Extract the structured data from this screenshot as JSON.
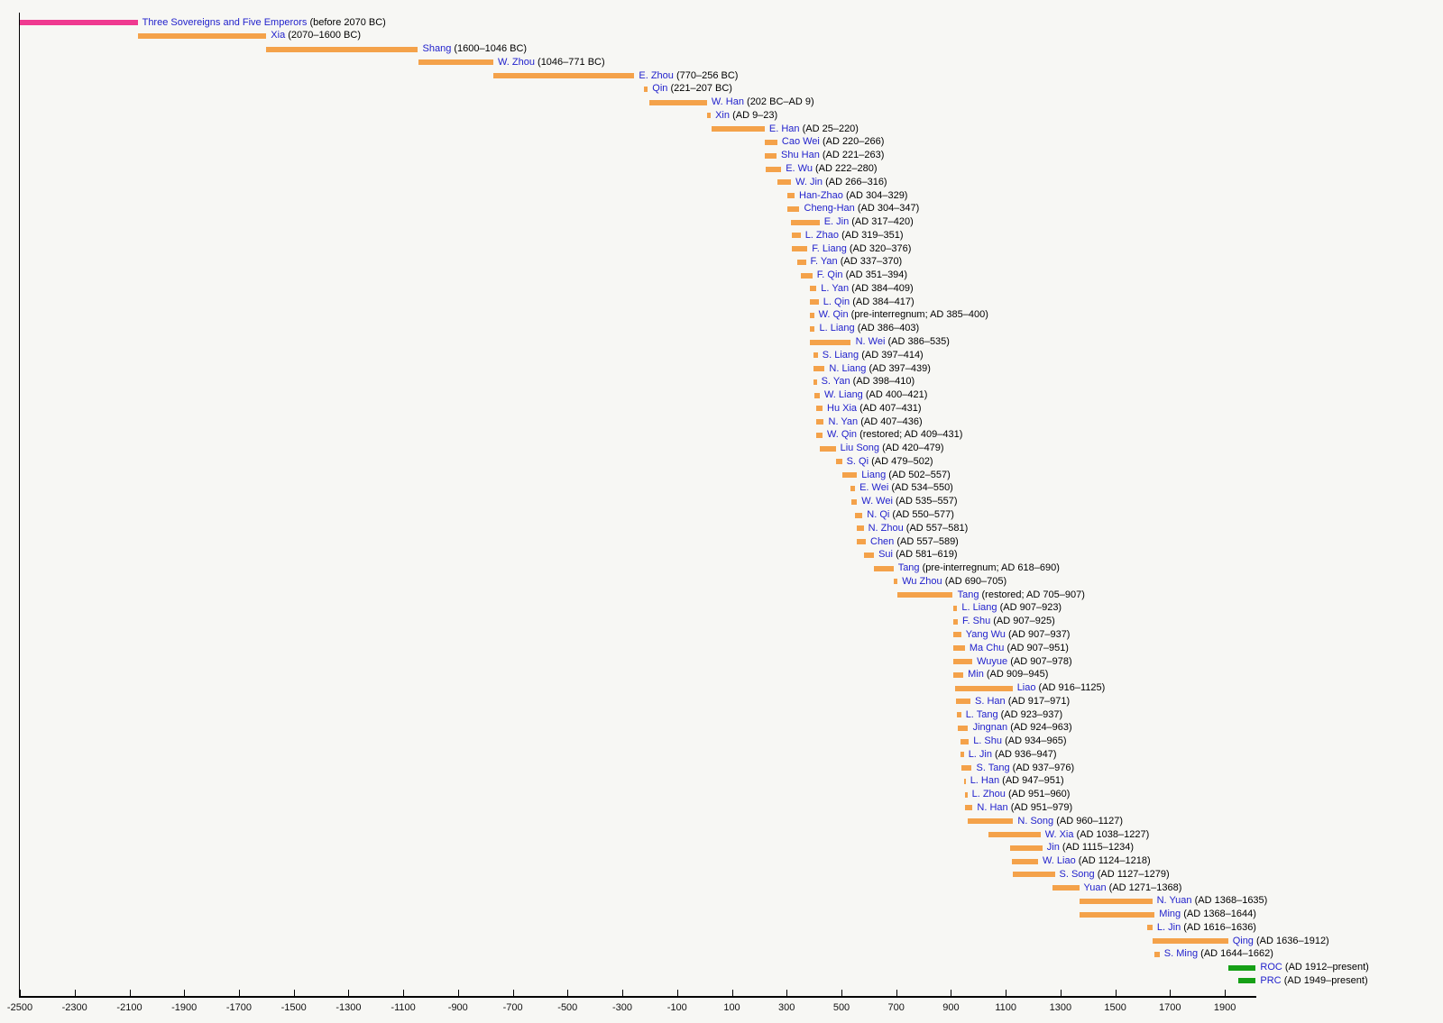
{
  "page": {
    "background": "#F7F7F4"
  },
  "chart_data": {
    "type": "bar",
    "variant": "horizontal-timeline",
    "title": "",
    "xlabel": "",
    "ylabel": "",
    "grid": false,
    "legend": "none",
    "x_axis": {
      "domain": [
        -2500,
        2015
      ],
      "tick_step": 200,
      "tick_values": [
        -2500,
        -2300,
        -2100,
        -1900,
        -1700,
        -1500,
        -1300,
        -1100,
        -900,
        -700,
        -500,
        -300,
        -100,
        100,
        300,
        500,
        700,
        900,
        1100,
        1300,
        1500,
        1700,
        1900
      ],
      "tick_labels": [
        "-2500",
        "-2300",
        "-2100",
        "-1900",
        "-1700",
        "-1500",
        "-1300",
        "-1100",
        "-900",
        "-700",
        "-500",
        "-300",
        "-100",
        "100",
        "300",
        "500",
        "700",
        "900",
        "1100",
        "1300",
        "1500",
        "1700",
        "1900"
      ]
    },
    "colors": {
      "dynasty": "#F4A24A",
      "legendary": "#EF3A90",
      "current": "#16A016",
      "name_text": "#2222CC",
      "date_text": "#000000",
      "axis": "#000000"
    },
    "rows": [
      {
        "name": "Three Sovereigns and Five Emperors",
        "dates": "(before 2070 BC)",
        "start": -2500,
        "end": -2070,
        "kind": "legendary"
      },
      {
        "name": "Xia",
        "dates": "(2070–1600 BC)",
        "start": -2070,
        "end": -1600,
        "kind": "dynasty"
      },
      {
        "name": "Shang",
        "dates": "(1600–1046 BC)",
        "start": -1600,
        "end": -1046,
        "kind": "dynasty"
      },
      {
        "name": "W. Zhou",
        "dates": "(1046–771 BC)",
        "start": -1046,
        "end": -771,
        "kind": "dynasty"
      },
      {
        "name": "E. Zhou",
        "dates": "(770–256 BC)",
        "start": -770,
        "end": -256,
        "kind": "dynasty"
      },
      {
        "name": "Qin",
        "dates": "(221–207 BC)",
        "start": -221,
        "end": -207,
        "kind": "dynasty"
      },
      {
        "name": "W. Han",
        "dates": "(202 BC–AD 9)",
        "start": -202,
        "end": 9,
        "kind": "dynasty"
      },
      {
        "name": "Xin",
        "dates": "(AD 9–23)",
        "start": 9,
        "end": 23,
        "kind": "dynasty"
      },
      {
        "name": "E. Han",
        "dates": "(AD 25–220)",
        "start": 25,
        "end": 220,
        "kind": "dynasty"
      },
      {
        "name": "Cao Wei",
        "dates": "(AD 220–266)",
        "start": 220,
        "end": 266,
        "kind": "dynasty"
      },
      {
        "name": "Shu Han",
        "dates": "(AD 221–263)",
        "start": 221,
        "end": 263,
        "kind": "dynasty"
      },
      {
        "name": "E. Wu",
        "dates": "(AD 222–280)",
        "start": 222,
        "end": 280,
        "kind": "dynasty"
      },
      {
        "name": "W. Jin",
        "dates": "(AD 266–316)",
        "start": 266,
        "end": 316,
        "kind": "dynasty"
      },
      {
        "name": "Han-Zhao",
        "dates": "(AD 304–329)",
        "start": 304,
        "end": 329,
        "kind": "dynasty"
      },
      {
        "name": "Cheng-Han",
        "dates": "(AD 304–347)",
        "start": 304,
        "end": 347,
        "kind": "dynasty"
      },
      {
        "name": "E. Jin",
        "dates": "(AD 317–420)",
        "start": 317,
        "end": 420,
        "kind": "dynasty"
      },
      {
        "name": "L. Zhao",
        "dates": "(AD 319–351)",
        "start": 319,
        "end": 351,
        "kind": "dynasty"
      },
      {
        "name": "F. Liang",
        "dates": "(AD 320–376)",
        "start": 320,
        "end": 376,
        "kind": "dynasty"
      },
      {
        "name": "F. Yan",
        "dates": "(AD 337–370)",
        "start": 337,
        "end": 370,
        "kind": "dynasty"
      },
      {
        "name": "F. Qin",
        "dates": "(AD 351–394)",
        "start": 351,
        "end": 394,
        "kind": "dynasty"
      },
      {
        "name": "L. Yan",
        "dates": "(AD 384–409)",
        "start": 384,
        "end": 409,
        "kind": "dynasty"
      },
      {
        "name": "L. Qin",
        "dates": "(AD 384–417)",
        "start": 384,
        "end": 417,
        "kind": "dynasty"
      },
      {
        "name": "W. Qin",
        "dates": "(pre-interregnum; AD 385–400)",
        "start": 385,
        "end": 400,
        "kind": "dynasty"
      },
      {
        "name": "L. Liang",
        "dates": "(AD 386–403)",
        "start": 386,
        "end": 403,
        "kind": "dynasty"
      },
      {
        "name": "N. Wei",
        "dates": "(AD 386–535)",
        "start": 386,
        "end": 535,
        "kind": "dynasty"
      },
      {
        "name": "S. Liang",
        "dates": "(AD 397–414)",
        "start": 397,
        "end": 414,
        "kind": "dynasty"
      },
      {
        "name": "N. Liang",
        "dates": "(AD 397–439)",
        "start": 397,
        "end": 439,
        "kind": "dynasty"
      },
      {
        "name": "S. Yan",
        "dates": "(AD 398–410)",
        "start": 398,
        "end": 410,
        "kind": "dynasty"
      },
      {
        "name": "W. Liang",
        "dates": "(AD 400–421)",
        "start": 400,
        "end": 421,
        "kind": "dynasty"
      },
      {
        "name": "Hu Xia",
        "dates": "(AD 407–431)",
        "start": 407,
        "end": 431,
        "kind": "dynasty"
      },
      {
        "name": "N. Yan",
        "dates": "(AD 407–436)",
        "start": 407,
        "end": 436,
        "kind": "dynasty"
      },
      {
        "name": "W. Qin",
        "dates": "(restored; AD 409–431)",
        "start": 409,
        "end": 431,
        "kind": "dynasty"
      },
      {
        "name": "Liu Song",
        "dates": "(AD 420–479)",
        "start": 420,
        "end": 479,
        "kind": "dynasty"
      },
      {
        "name": "S. Qi",
        "dates": "(AD 479–502)",
        "start": 479,
        "end": 502,
        "kind": "dynasty"
      },
      {
        "name": "Liang",
        "dates": "(AD 502–557)",
        "start": 502,
        "end": 557,
        "kind": "dynasty"
      },
      {
        "name": "E. Wei",
        "dates": "(AD 534–550)",
        "start": 534,
        "end": 550,
        "kind": "dynasty"
      },
      {
        "name": "W. Wei",
        "dates": "(AD 535–557)",
        "start": 535,
        "end": 557,
        "kind": "dynasty"
      },
      {
        "name": "N. Qi",
        "dates": "(AD 550–577)",
        "start": 550,
        "end": 577,
        "kind": "dynasty"
      },
      {
        "name": "N. Zhou",
        "dates": "(AD 557–581)",
        "start": 557,
        "end": 581,
        "kind": "dynasty"
      },
      {
        "name": "Chen",
        "dates": "(AD 557–589)",
        "start": 557,
        "end": 589,
        "kind": "dynasty"
      },
      {
        "name": "Sui",
        "dates": "(AD 581–619)",
        "start": 581,
        "end": 619,
        "kind": "dynasty"
      },
      {
        "name": "Tang",
        "dates": "(pre-interregnum; AD 618–690)",
        "start": 618,
        "end": 690,
        "kind": "dynasty"
      },
      {
        "name": "Wu Zhou",
        "dates": "(AD 690–705)",
        "start": 690,
        "end": 705,
        "kind": "dynasty"
      },
      {
        "name": "Tang",
        "dates": "(restored; AD 705–907)",
        "start": 705,
        "end": 907,
        "kind": "dynasty"
      },
      {
        "name": "L. Liang",
        "dates": "(AD 907–923)",
        "start": 907,
        "end": 923,
        "kind": "dynasty"
      },
      {
        "name": "F. Shu",
        "dates": "(AD 907–925)",
        "start": 907,
        "end": 925,
        "kind": "dynasty"
      },
      {
        "name": "Yang Wu",
        "dates": "(AD 907–937)",
        "start": 907,
        "end": 937,
        "kind": "dynasty"
      },
      {
        "name": "Ma Chu",
        "dates": "(AD 907–951)",
        "start": 907,
        "end": 951,
        "kind": "dynasty"
      },
      {
        "name": "Wuyue",
        "dates": "(AD 907–978)",
        "start": 907,
        "end": 978,
        "kind": "dynasty"
      },
      {
        "name": "Min",
        "dates": "(AD 909–945)",
        "start": 909,
        "end": 945,
        "kind": "dynasty"
      },
      {
        "name": "Liao",
        "dates": "(AD 916–1125)",
        "start": 916,
        "end": 1125,
        "kind": "dynasty"
      },
      {
        "name": "S. Han",
        "dates": "(AD 917–971)",
        "start": 917,
        "end": 971,
        "kind": "dynasty"
      },
      {
        "name": "L. Tang",
        "dates": "(AD 923–937)",
        "start": 923,
        "end": 937,
        "kind": "dynasty"
      },
      {
        "name": "Jingnan",
        "dates": "(AD 924–963)",
        "start": 924,
        "end": 963,
        "kind": "dynasty"
      },
      {
        "name": "L. Shu",
        "dates": "(AD 934–965)",
        "start": 934,
        "end": 965,
        "kind": "dynasty"
      },
      {
        "name": "L. Jin",
        "dates": "(AD 936–947)",
        "start": 936,
        "end": 947,
        "kind": "dynasty"
      },
      {
        "name": "S. Tang",
        "dates": "(AD 937–976)",
        "start": 937,
        "end": 976,
        "kind": "dynasty"
      },
      {
        "name": "L. Han",
        "dates": "(AD 947–951)",
        "start": 947,
        "end": 951,
        "kind": "dynasty"
      },
      {
        "name": "L. Zhou",
        "dates": "(AD 951–960)",
        "start": 951,
        "end": 960,
        "kind": "dynasty"
      },
      {
        "name": "N. Han",
        "dates": "(AD 951–979)",
        "start": 951,
        "end": 979,
        "kind": "dynasty"
      },
      {
        "name": "N. Song",
        "dates": "(AD 960–1127)",
        "start": 960,
        "end": 1127,
        "kind": "dynasty"
      },
      {
        "name": "W. Xia",
        "dates": "(AD 1038–1227)",
        "start": 1038,
        "end": 1227,
        "kind": "dynasty"
      },
      {
        "name": "Jin",
        "dates": "(AD 1115–1234)",
        "start": 1115,
        "end": 1234,
        "kind": "dynasty"
      },
      {
        "name": "W. Liao",
        "dates": "(AD 1124–1218)",
        "start": 1124,
        "end": 1218,
        "kind": "dynasty"
      },
      {
        "name": "S. Song",
        "dates": "(AD 1127–1279)",
        "start": 1127,
        "end": 1279,
        "kind": "dynasty"
      },
      {
        "name": "Yuan",
        "dates": "(AD 1271–1368)",
        "start": 1271,
        "end": 1368,
        "kind": "dynasty"
      },
      {
        "name": "N. Yuan",
        "dates": "(AD 1368–1635)",
        "start": 1368,
        "end": 1635,
        "kind": "dynasty"
      },
      {
        "name": "Ming",
        "dates": "(AD 1368–1644)",
        "start": 1368,
        "end": 1644,
        "kind": "dynasty"
      },
      {
        "name": "L. Jin",
        "dates": "(AD 1616–1636)",
        "start": 1616,
        "end": 1636,
        "kind": "dynasty"
      },
      {
        "name": "Qing",
        "dates": "(AD 1636–1912)",
        "start": 1636,
        "end": 1912,
        "kind": "dynasty"
      },
      {
        "name": "S. Ming",
        "dates": "(AD 1644–1662)",
        "start": 1644,
        "end": 1662,
        "kind": "dynasty"
      },
      {
        "name": "ROC",
        "dates": "(AD 1912–present)",
        "start": 1912,
        "end": 2013,
        "kind": "current"
      },
      {
        "name": "PRC",
        "dates": "(AD 1949–present)",
        "start": 1949,
        "end": 2013,
        "kind": "current"
      }
    ]
  }
}
